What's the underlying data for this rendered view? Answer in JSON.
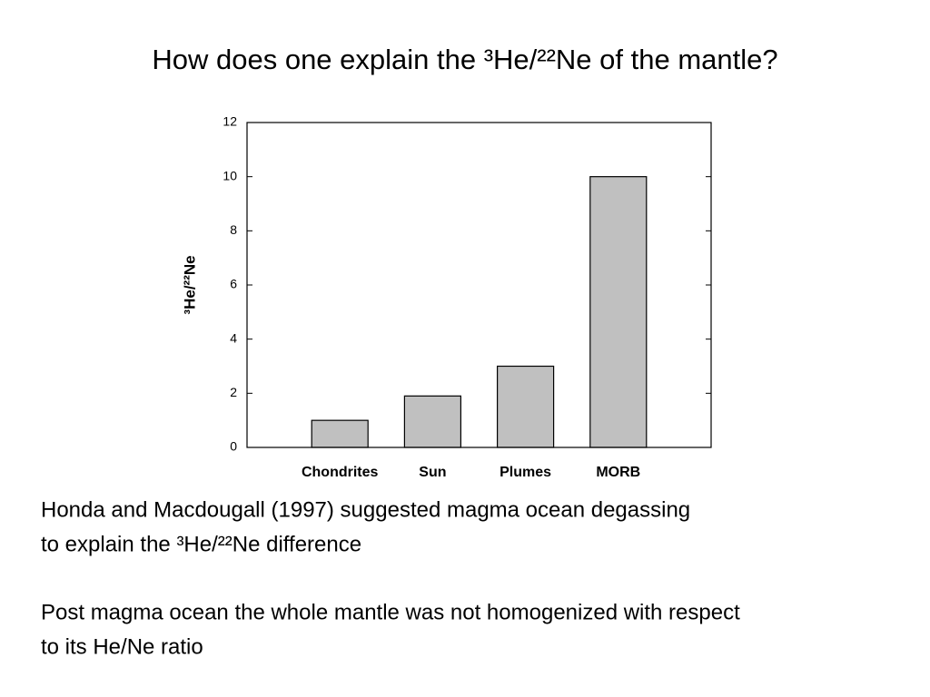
{
  "slide_title": "How does one explain the ³He/²²Ne of the mantle?",
  "chart_data": {
    "type": "bar",
    "y_label": "³He/²²Ne",
    "categories": [
      "Chondrites",
      "Sun",
      "Plumes",
      "MORB"
    ],
    "values": [
      1,
      1.9,
      3,
      10
    ],
    "color": "#c0c0c0",
    "ylim": [
      0,
      12
    ],
    "yticks": [
      0,
      2,
      4,
      6,
      8,
      10,
      12
    ],
    "grid": false
  },
  "body": [
    [
      "Honda and Macdougall (1997) suggested magma ocean degassing",
      "to explain the ³He/²²Ne difference"
    ],
    [
      "Post magma ocean the whole mantle was not homogenized with respect",
      "to its He/Ne ratio"
    ]
  ]
}
